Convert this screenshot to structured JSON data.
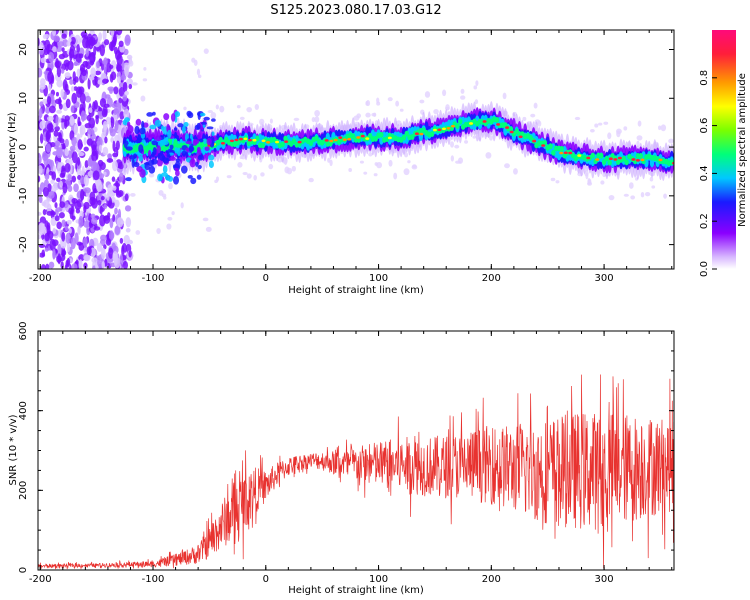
{
  "page": {
    "title": "S125.2023.080.17.03.G12"
  },
  "chart_data": [
    {
      "type": "heatmap",
      "xlabel": "Height of straight line (km)",
      "ylabel": "Frequency (Hz)",
      "xlim": [
        -202,
        362
      ],
      "ylim": [
        -25,
        24
      ],
      "x_ticks": [
        -200,
        -100,
        0,
        100,
        200,
        300
      ],
      "y_ticks": [
        -20,
        -10,
        0,
        10,
        20
      ],
      "grid": false,
      "colorbar": {
        "label": "Normalized spectral amplitude",
        "range": [
          0,
          1
        ],
        "ticks": [
          0.0,
          0.2,
          0.4,
          0.6,
          0.8
        ],
        "colors": [
          "#ffffff",
          "#d8b8ff",
          "#8a00ff",
          "#1a1aff",
          "#00c8ff",
          "#00ff7a",
          "#7aff00",
          "#ffff00",
          "#ff9a00",
          "#ff1e3a",
          "#ff0a7a"
        ]
      },
      "ridge": {
        "description_points_x": [
          -120,
          -100,
          -80,
          -60,
          -40,
          -20,
          0,
          20,
          40,
          60,
          80,
          100,
          120,
          140,
          160,
          180,
          200,
          220,
          240,
          260,
          280,
          300,
          320,
          340,
          360
        ],
        "frequency_hz": [
          0,
          0,
          0.5,
          0,
          1,
          1.5,
          1,
          1,
          1,
          1.5,
          2,
          2,
          2,
          3,
          4,
          5,
          5.5,
          3,
          1,
          -1,
          -2,
          -2.5,
          -2.5,
          -2.5,
          -3
        ]
      }
    },
    {
      "type": "line",
      "xlabel": "Height of straight line (km)",
      "ylabel": "SNR (10 * v/v)",
      "xlim": [
        -202,
        362
      ],
      "ylim": [
        0,
        600
      ],
      "x_ticks": [
        -200,
        -100,
        0,
        100,
        200,
        300
      ],
      "y_ticks": [
        0,
        200,
        400,
        600
      ],
      "grid": false,
      "series": [
        {
          "color": "#e8322f",
          "x": [
            -200,
            -150,
            -100,
            -80,
            -60,
            -50,
            -40,
            -30,
            -20,
            -10,
            0,
            10,
            20,
            30,
            40,
            50,
            60,
            80,
            100,
            120,
            140,
            160,
            180,
            200,
            220,
            240,
            260,
            280,
            300,
            320,
            340,
            360
          ],
          "mean": [
            10,
            12,
            15,
            25,
            40,
            70,
            110,
            140,
            170,
            200,
            210,
            240,
            260,
            270,
            275,
            275,
            270,
            265,
            265,
            265,
            260,
            260,
            265,
            265,
            255,
            250,
            250,
            250,
            250,
            255,
            260,
            265
          ],
          "spread": [
            5,
            5,
            8,
            15,
            25,
            40,
            60,
            70,
            80,
            60,
            40,
            30,
            25,
            20,
            20,
            25,
            30,
            45,
            60,
            70,
            75,
            80,
            90,
            100,
            110,
            130,
            140,
            150,
            150,
            140,
            130,
            120
          ]
        }
      ]
    }
  ]
}
